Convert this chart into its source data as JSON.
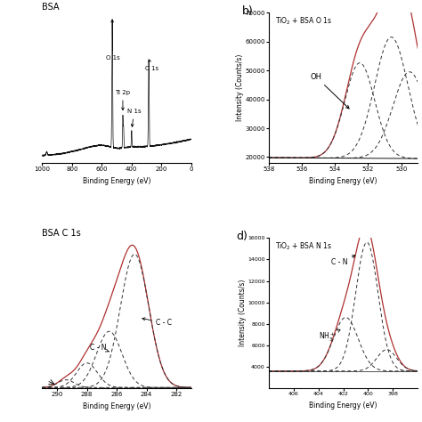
{
  "bg_color": "#ffffff",
  "panel_a_title": "BSA",
  "panel_b_label": "b)",
  "panel_b_title": "TiO$_2$ + BSA O 1s",
  "panel_c_title": "BSA C 1s",
  "panel_d_label": "d)",
  "panel_d_title": "TiO$_2$ + BSA N 1s",
  "xlabel": "Binding Energy (eV)",
  "ylabel_intensity": "Intensity (Counts/s)",
  "line_red": "#b03030",
  "line_black": "#111111",
  "dashed_color": "#333333"
}
